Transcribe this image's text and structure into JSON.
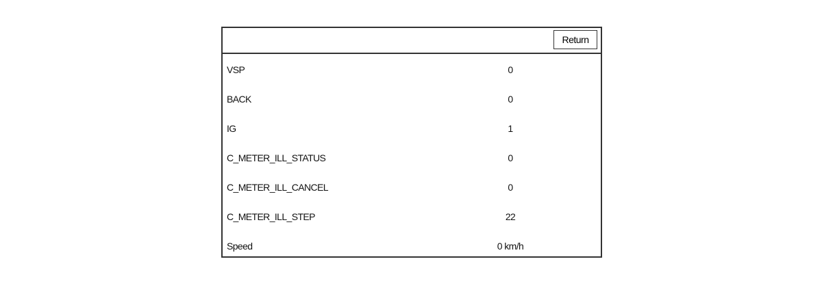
{
  "header": {
    "button": "Return"
  },
  "table": {
    "rows": [
      [
        "VSP",
        "0"
      ],
      [
        "BACK",
        "0"
      ],
      [
        "IG",
        "1"
      ],
      [
        "C_METER_ILL_STATUS",
        "0"
      ],
      [
        "C_METER_ILL_CANCEL",
        "0"
      ],
      [
        "C_METER_ILL_STEP",
        "22"
      ],
      [
        "Speed",
        "0 km/h"
      ]
    ]
  }
}
